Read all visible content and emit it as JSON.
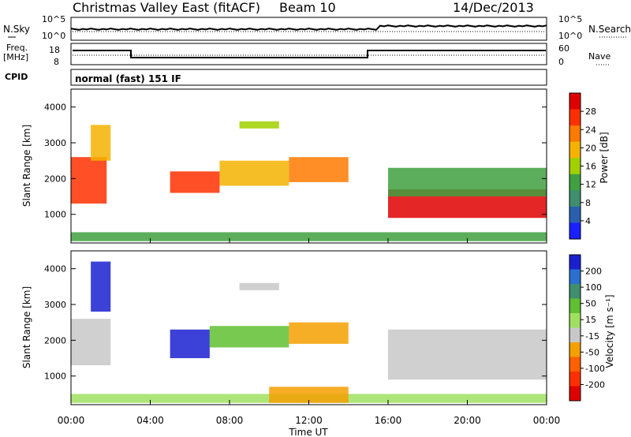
{
  "header": {
    "title": "Christmas Valley East (fitACF)",
    "beam": "Beam 10",
    "date": "14/Dec/2013"
  },
  "noise_panel": {
    "left_label": "N.Sky",
    "right_label": "N.Search",
    "left_ticks": [
      "10^5",
      "10^0"
    ],
    "right_ticks": [
      "10^5",
      "10^0"
    ]
  },
  "freq_panel": {
    "left_label_1": "Freq.",
    "left_label_2": "[MHz]",
    "left_ticks": [
      "18",
      "8"
    ],
    "right_label": "Nave",
    "right_ticks": [
      "60",
      "0"
    ]
  },
  "cpid": {
    "label": "CPID",
    "value": "normal (fast) 151 IF"
  },
  "chart_data": [
    {
      "type": "heatmap",
      "name": "power",
      "ylabel": "Slant Range [km]",
      "yticks": [
        1000,
        2000,
        3000,
        4000
      ],
      "ylim": [
        200,
        4500
      ],
      "colorbar": {
        "label": "Power [dB]",
        "ticks": [
          "28",
          "24",
          "20",
          "16",
          "12",
          "8",
          "4"
        ],
        "colors": [
          "#e00000",
          "#ff3000",
          "#ff7a00",
          "#f5b300",
          "#a0d000",
          "#40a040",
          "#3f8f6f",
          "#2a5fb0",
          "#1a20ff"
        ]
      },
      "bands": [
        {
          "t0": 0.0,
          "t1": 1.8,
          "r0": 1300,
          "r1": 2600,
          "p": 24
        },
        {
          "t0": 1.0,
          "t1": 2.0,
          "r0": 2500,
          "r1": 3500,
          "p": 18
        },
        {
          "t0": 5.0,
          "t1": 7.5,
          "r0": 1600,
          "r1": 2200,
          "p": 26
        },
        {
          "t0": 7.5,
          "t1": 11.0,
          "r0": 1800,
          "r1": 2500,
          "p": 18
        },
        {
          "t0": 11.0,
          "t1": 14.0,
          "r0": 1900,
          "r1": 2600,
          "p": 20
        },
        {
          "t0": 8.5,
          "t1": 10.5,
          "r0": 3400,
          "r1": 3600,
          "p": 14
        },
        {
          "t0": 16.0,
          "t1": 24.0,
          "r0": 900,
          "r1": 1700,
          "p": 28
        },
        {
          "t0": 16.0,
          "t1": 24.0,
          "r0": 1500,
          "r1": 2300,
          "p": 12
        },
        {
          "t0": 0.0,
          "t1": 24.0,
          "r0": 250,
          "r1": 500,
          "p": 12
        }
      ]
    },
    {
      "type": "heatmap",
      "name": "velocity",
      "ylabel": "Slant Range [km]",
      "yticks": [
        1000,
        2000,
        3000,
        4000
      ],
      "ylim": [
        200,
        4500
      ],
      "xlabel": "Time UT",
      "xticks": [
        "00:00",
        "04:00",
        "08:00",
        "12:00",
        "16:00",
        "20:00",
        "00:00"
      ],
      "colorbar": {
        "label": "Velocity [m s⁻¹]",
        "ticks": [
          "200",
          "100",
          "50",
          "15",
          "-15",
          "-50",
          "-100",
          "-200"
        ],
        "colors": [
          "#1a20d0",
          "#2a70d0",
          "#3f8f6f",
          "#60c030",
          "#a0e060",
          "#c8c8c8",
          "#f5a000",
          "#ff6000",
          "#ff3000",
          "#e00000"
        ]
      },
      "bands": [
        {
          "t0": 0.0,
          "t1": 2.0,
          "r0": 1300,
          "r1": 2600,
          "v": 0
        },
        {
          "t0": 1.0,
          "t1": 2.0,
          "r0": 2800,
          "r1": 4200,
          "v": 200
        },
        {
          "t0": 5.0,
          "t1": 7.0,
          "r0": 1500,
          "r1": 2300,
          "v": 200
        },
        {
          "t0": 7.0,
          "t1": 11.0,
          "r0": 1800,
          "r1": 2400,
          "v": 50
        },
        {
          "t0": 11.0,
          "t1": 14.0,
          "r0": 1900,
          "r1": 2500,
          "v": -80
        },
        {
          "t0": 8.5,
          "t1": 10.5,
          "r0": 3400,
          "r1": 3600,
          "v": 0
        },
        {
          "t0": 16.0,
          "t1": 24.0,
          "r0": 900,
          "r1": 2300,
          "v": 0
        },
        {
          "t0": 0.0,
          "t1": 24.0,
          "r0": 250,
          "r1": 500,
          "v": 30
        },
        {
          "t0": 10.0,
          "t1": 14.0,
          "r0": 250,
          "r1": 700,
          "v": -80
        }
      ]
    }
  ]
}
